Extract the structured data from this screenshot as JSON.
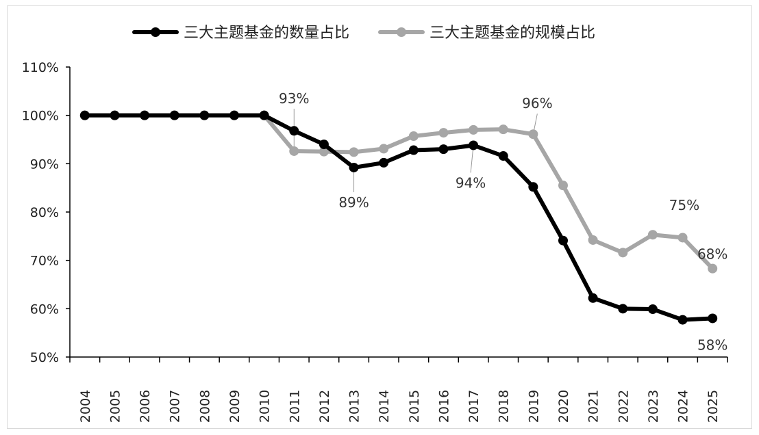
{
  "chart_data": {
    "type": "line",
    "title": "",
    "xlabel": "",
    "ylabel": "",
    "categories": [
      "2004",
      "2005",
      "2006",
      "2007",
      "2008",
      "2009",
      "2010",
      "2011",
      "2012",
      "2013",
      "2014",
      "2015",
      "2016",
      "2017",
      "2018",
      "2019",
      "2020",
      "2021",
      "2022",
      "2023",
      "2024",
      "2025"
    ],
    "ylim": [
      50,
      110
    ],
    "yticks": [
      50,
      60,
      70,
      80,
      90,
      100,
      110
    ],
    "ytick_labels": [
      "50%",
      "60%",
      "70%",
      "80%",
      "90%",
      "100%",
      "110%"
    ],
    "grid": false,
    "legend_position": "top",
    "series": [
      {
        "name": "三大主题基金的数量占比",
        "color": "#000000",
        "values": [
          100,
          100,
          100,
          100,
          100,
          100,
          100,
          96.8,
          94.0,
          89.2,
          90.2,
          92.8,
          93.0,
          93.8,
          91.6,
          85.2,
          74.1,
          62.2,
          60.0,
          59.9,
          57.7,
          58.0
        ]
      },
      {
        "name": "三大主题基金的规模占比",
        "color": "#a6a6a6",
        "values": [
          100,
          100,
          100,
          100,
          100,
          100,
          100,
          92.6,
          92.5,
          92.4,
          93.1,
          95.7,
          96.4,
          97.0,
          97.1,
          96.1,
          85.5,
          74.2,
          71.6,
          75.3,
          74.7,
          68.3
        ]
      }
    ],
    "annotations": [
      {
        "text": "93%",
        "series": 1,
        "index": 7
      },
      {
        "text": "89%",
        "series": 0,
        "index": 9
      },
      {
        "text": "94%",
        "series": 0,
        "index": 13
      },
      {
        "text": "96%",
        "series": 1,
        "index": 15
      },
      {
        "text": "75%",
        "series": 1,
        "index": 19
      },
      {
        "text": "68%",
        "series": 1,
        "index": 21
      },
      {
        "text": "58%",
        "series": 0,
        "index": 21
      }
    ]
  }
}
